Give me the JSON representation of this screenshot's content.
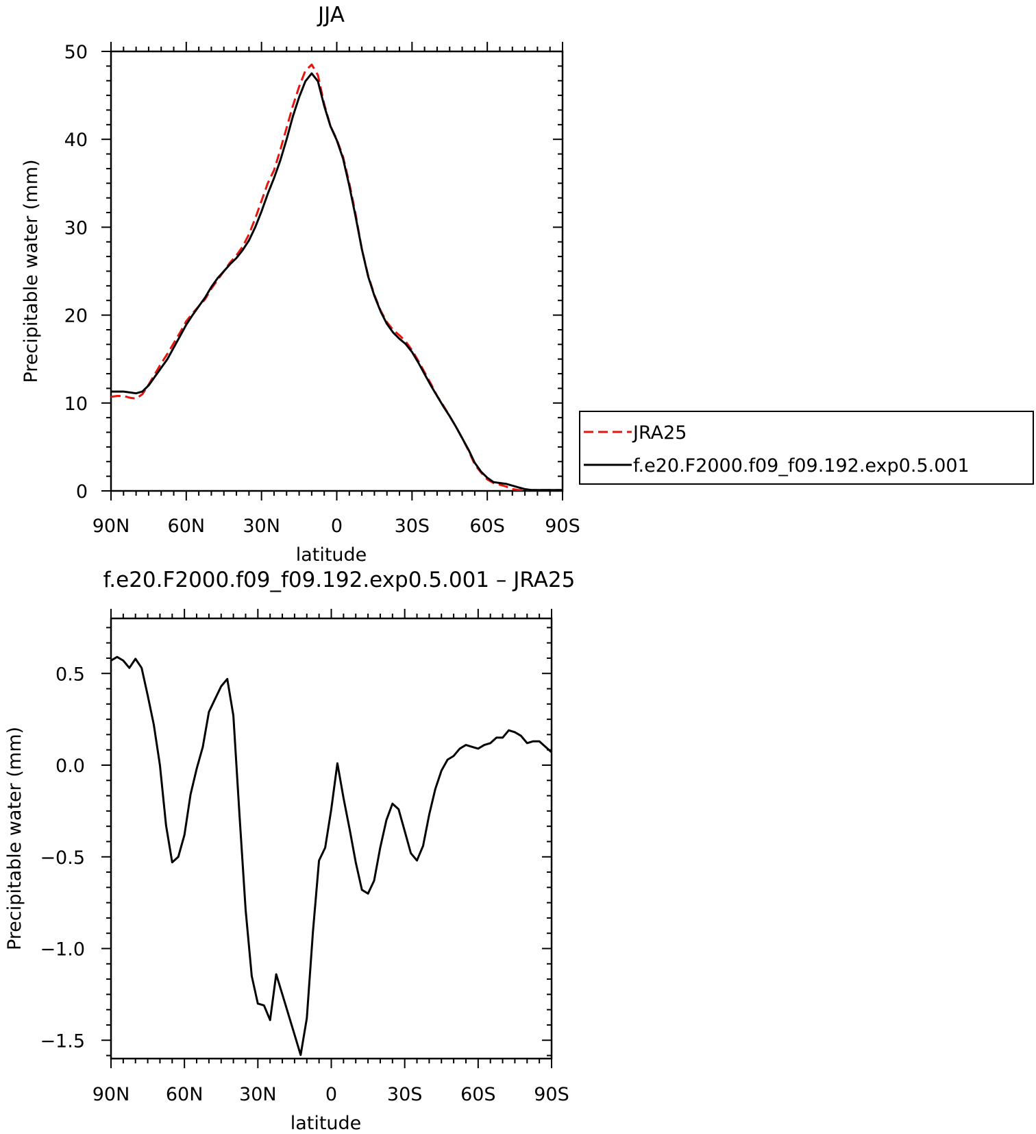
{
  "chart_data": [
    {
      "type": "line",
      "title": "JJA",
      "xlabel": "latitude",
      "ylabel": "Precipitable water (mm)",
      "xlim": [
        90,
        -90
      ],
      "ylim": [
        0,
        50
      ],
      "x_ticks": [
        90,
        60,
        30,
        0,
        -30,
        -60,
        -90
      ],
      "x_tick_labels": [
        "90N",
        "60N",
        "30N",
        "0",
        "30S",
        "60S",
        "90S"
      ],
      "y_ticks": [
        0,
        10,
        20,
        30,
        40,
        50
      ],
      "y_tick_labels": [
        "0",
        "10",
        "20",
        "30",
        "40",
        "50"
      ],
      "legend_position": "right",
      "series": [
        {
          "name": "JRA25",
          "color": "#e8140f",
          "dash": "dashed",
          "x": [
            90,
            87.5,
            85,
            82.5,
            80,
            77.5,
            75,
            72.5,
            70,
            67.5,
            65,
            62.5,
            60,
            57.5,
            55,
            52.5,
            50,
            47.5,
            45,
            42.5,
            40,
            37.5,
            35,
            32.5,
            30,
            27.5,
            25,
            22.5,
            20,
            17.5,
            15,
            12.5,
            10,
            7.5,
            5,
            2.5,
            0,
            -2.5,
            -5,
            -7.5,
            -10,
            -12.5,
            -15,
            -17.5,
            -20,
            -22.5,
            -25,
            -27.5,
            -30,
            -32.5,
            -35,
            -37.5,
            -40,
            -42.5,
            -45,
            -47.5,
            -50,
            -52.5,
            -55,
            -57.5,
            -60,
            -62.5,
            -65,
            -67.5,
            -70,
            -72.5,
            -75,
            -77.5,
            -80,
            -82.5,
            -85,
            -87.5,
            -90
          ],
          "values": [
            10.7,
            10.8,
            10.8,
            10.6,
            10.5,
            11.0,
            12.1,
            13.3,
            14.5,
            15.6,
            16.8,
            18.0,
            19.3,
            20.2,
            21.0,
            21.8,
            23.0,
            24.0,
            25.0,
            26.0,
            26.8,
            27.8,
            29.2,
            31.0,
            33.0,
            35.0,
            36.5,
            38.8,
            41.3,
            43.8,
            46.0,
            47.8,
            48.5,
            47.3,
            44.0,
            41.5,
            40.0,
            38.0,
            35.0,
            31.5,
            27.5,
            24.5,
            22.3,
            20.5,
            19.2,
            18.3,
            17.7,
            17.0,
            16.0,
            14.8,
            13.5,
            12.2,
            10.8,
            9.7,
            8.5,
            7.3,
            6.0,
            4.6,
            3.0,
            2.1,
            1.3,
            0.9,
            0.7,
            0.5,
            0.2,
            0.1,
            0.1,
            0.1,
            0.1,
            0.1,
            0.1,
            0.1,
            0.1
          ]
        },
        {
          "name": "f.e20.F2000.f09_f09.192.exp0.5.001",
          "color": "#000000",
          "dash": "solid",
          "x": [
            90,
            87.5,
            85,
            82.5,
            80,
            77.5,
            75,
            72.5,
            70,
            67.5,
            65,
            62.5,
            60,
            57.5,
            55,
            52.5,
            50,
            47.5,
            45,
            42.5,
            40,
            37.5,
            35,
            32.5,
            30,
            27.5,
            25,
            22.5,
            20,
            17.5,
            15,
            12.5,
            10,
            7.5,
            5,
            2.5,
            0,
            -2.5,
            -5,
            -7.5,
            -10,
            -12.5,
            -15,
            -17.5,
            -20,
            -22.5,
            -25,
            -27.5,
            -30,
            -32.5,
            -35,
            -37.5,
            -40,
            -42.5,
            -45,
            -47.5,
            -50,
            -52.5,
            -55,
            -57.5,
            -60,
            -62.5,
            -65,
            -67.5,
            -70,
            -72.5,
            -75,
            -77.5,
            -80,
            -82.5,
            -85,
            -87.5,
            -90
          ],
          "values": [
            11.3,
            11.3,
            11.3,
            11.2,
            11.1,
            11.3,
            12.0,
            13.0,
            14.0,
            15.0,
            16.3,
            17.6,
            18.9,
            20.0,
            21.0,
            22.0,
            23.2,
            24.2,
            25.0,
            25.8,
            26.5,
            27.4,
            28.5,
            30.0,
            31.8,
            33.8,
            35.6,
            37.6,
            40.0,
            42.6,
            44.8,
            46.6,
            47.5,
            46.6,
            43.8,
            41.5,
            39.9,
            37.8,
            34.7,
            31.2,
            27.5,
            24.4,
            22.2,
            20.4,
            19.0,
            18.0,
            17.3,
            16.7,
            15.8,
            14.6,
            13.3,
            12.0,
            10.8,
            9.6,
            8.5,
            7.3,
            6.0,
            4.7,
            3.2,
            2.2,
            1.5,
            1.0,
            0.9,
            0.8,
            0.6,
            0.4,
            0.2,
            0.1,
            0.1,
            0.1,
            0.1,
            0.1,
            0.1
          ]
        }
      ]
    },
    {
      "type": "line",
      "title": "f.e20.F2000.f09_f09.192.exp0.5.001 – JRA25",
      "xlabel": "latitude",
      "ylabel": "Precipitable water (mm)",
      "xlim": [
        90,
        -90
      ],
      "ylim": [
        -1.6,
        0.8
      ],
      "x_ticks": [
        90,
        60,
        30,
        0,
        -30,
        -60,
        -90
      ],
      "x_tick_labels": [
        "90N",
        "60N",
        "30N",
        "0",
        "30S",
        "60S",
        "90S"
      ],
      "y_ticks": [
        -1.5,
        -1.0,
        -0.5,
        0.0,
        0.5
      ],
      "y_tick_labels": [
        "−1.5",
        "−1.0",
        "−0.5",
        "0.0",
        "0.5"
      ],
      "series": [
        {
          "color": "#000000",
          "dash": "solid",
          "x": [
            90,
            87.5,
            85,
            82.5,
            80,
            77.5,
            75,
            72.5,
            70,
            67.5,
            65,
            62.5,
            60,
            57.5,
            55,
            52.5,
            50,
            47.5,
            45,
            42.5,
            40,
            37.5,
            35,
            32.5,
            30,
            27.5,
            25,
            22.5,
            20,
            17.5,
            15,
            12.5,
            10,
            7.5,
            5,
            2.5,
            0,
            -2.5,
            -5,
            -7.5,
            -10,
            -12.5,
            -15,
            -17.5,
            -20,
            -22.5,
            -25,
            -27.5,
            -30,
            -32.5,
            -35,
            -37.5,
            -40,
            -42.5,
            -45,
            -47.5,
            -50,
            -52.5,
            -55,
            -57.5,
            -60,
            -62.5,
            -65,
            -67.5,
            -70,
            -72.5,
            -75,
            -77.5,
            -80,
            -82.5,
            -85,
            -87.5,
            -90
          ],
          "values": [
            0.57,
            0.59,
            0.57,
            0.53,
            0.58,
            0.53,
            0.38,
            0.22,
            0.0,
            -0.33,
            -0.53,
            -0.5,
            -0.38,
            -0.16,
            -0.02,
            0.1,
            0.29,
            0.36,
            0.43,
            0.47,
            0.27,
            -0.27,
            -0.79,
            -1.15,
            -1.3,
            -1.31,
            -1.39,
            -1.14,
            -1.25,
            -1.36,
            -1.47,
            -1.58,
            -1.38,
            -0.91,
            -0.52,
            -0.45,
            -0.24,
            0.01,
            -0.18,
            -0.35,
            -0.53,
            -0.68,
            -0.7,
            -0.63,
            -0.45,
            -0.3,
            -0.21,
            -0.24,
            -0.36,
            -0.48,
            -0.52,
            -0.44,
            -0.27,
            -0.13,
            -0.03,
            0.03,
            0.05,
            0.09,
            0.11,
            0.1,
            0.09,
            0.11,
            0.12,
            0.15,
            0.15,
            0.19,
            0.18,
            0.16,
            0.12,
            0.13,
            0.13,
            0.1,
            0.07
          ]
        }
      ]
    }
  ]
}
